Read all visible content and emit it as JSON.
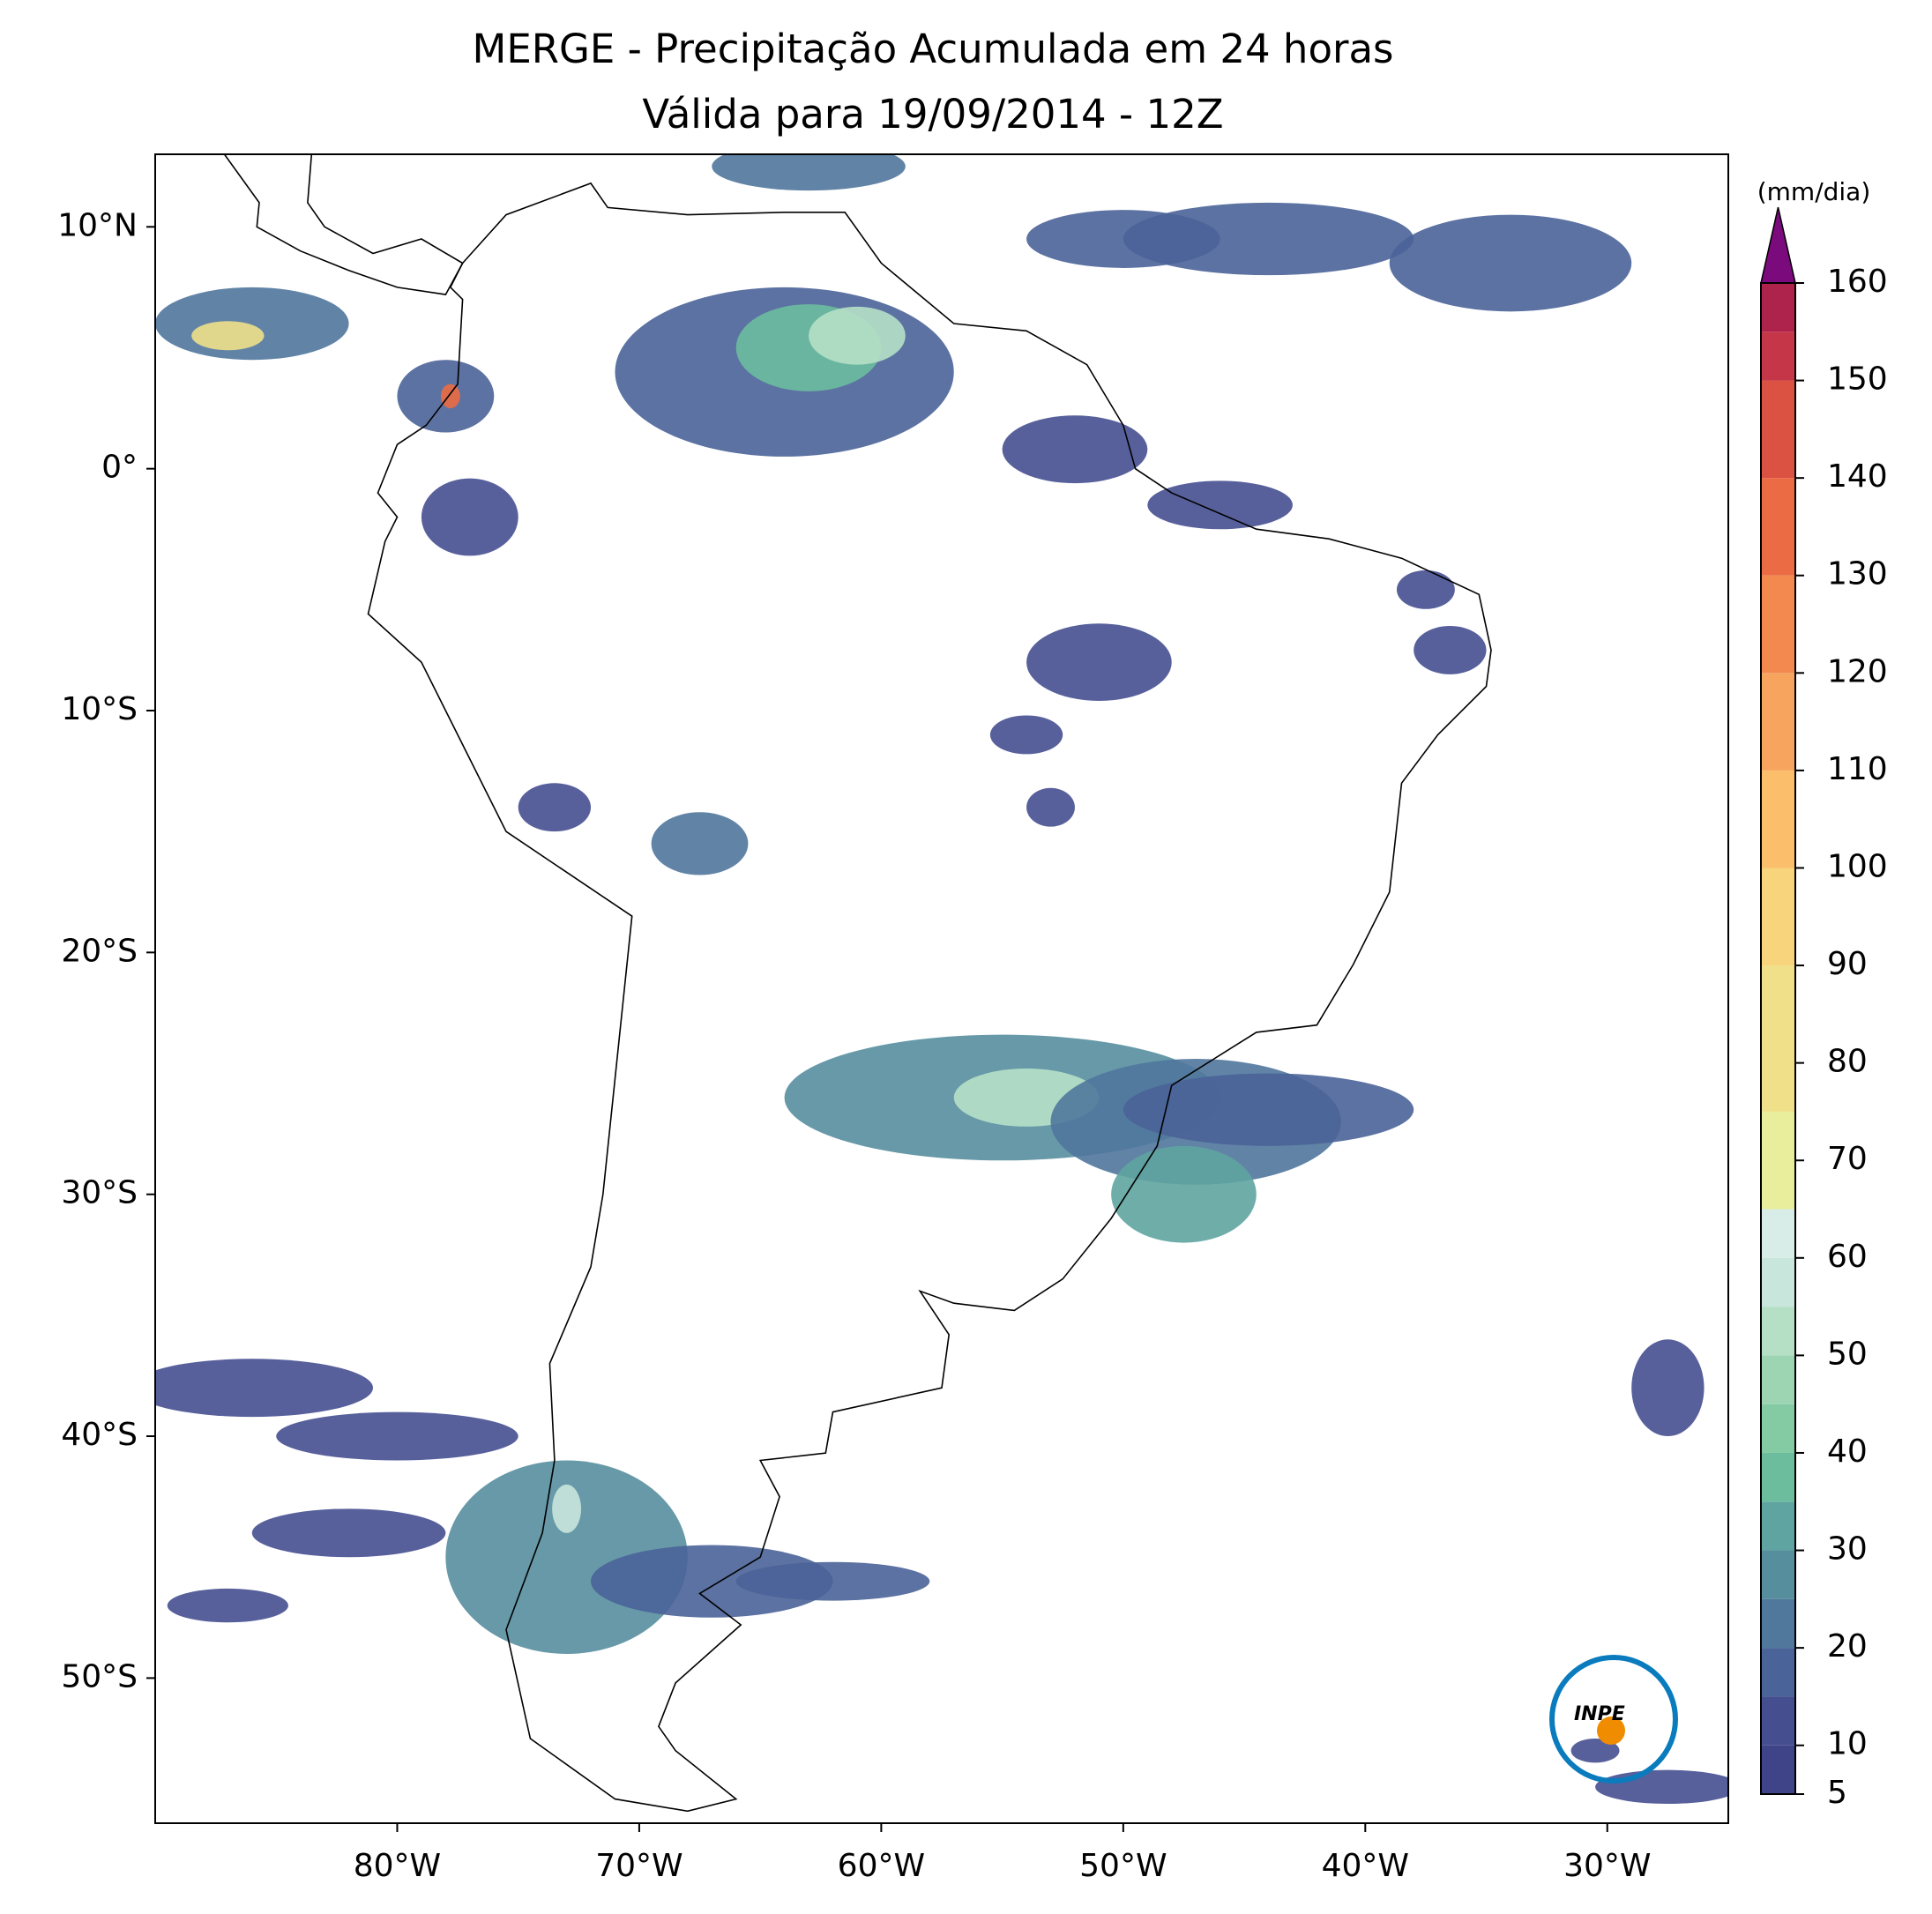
{
  "map": {
    "title": [
      "MERGE - Precipitação Acumulada em 24 horas",
      "Válida para 19/09/2014 - 12Z"
    ],
    "xlim": [
      -90,
      -25
    ],
    "ylim": [
      -56,
      13
    ],
    "xticks": [
      {
        "value": -80,
        "label": "80°W"
      },
      {
        "value": -70,
        "label": "70°W"
      },
      {
        "value": -60,
        "label": "60°W"
      },
      {
        "value": -50,
        "label": "50°W"
      },
      {
        "value": -40,
        "label": "40°W"
      },
      {
        "value": -30,
        "label": "30°W"
      }
    ],
    "yticks": [
      {
        "value": 10,
        "label": "10°N"
      },
      {
        "value": 0,
        "label": "0°"
      },
      {
        "value": -10,
        "label": "10°S"
      },
      {
        "value": -20,
        "label": "20°S"
      },
      {
        "value": -30,
        "label": "30°S"
      },
      {
        "value": -40,
        "label": "40°S"
      },
      {
        "value": -50,
        "label": "50°S"
      }
    ],
    "colorbar": {
      "label": "(mm/dia)",
      "lim": [
        5,
        160
      ],
      "ticks": [
        5,
        10,
        20,
        30,
        40,
        50,
        60,
        70,
        80,
        90,
        100,
        110,
        120,
        130,
        140,
        150,
        160
      ],
      "bands": [
        {
          "value": 5,
          "color": "#3f4388"
        },
        {
          "value": 10,
          "color": "#454f90"
        },
        {
          "value": 15,
          "color": "#4a6398"
        },
        {
          "value": 20,
          "color": "#50779c"
        },
        {
          "value": 25,
          "color": "#578e9e"
        },
        {
          "value": 30,
          "color": "#5fa4a0"
        },
        {
          "value": 35,
          "color": "#6cbd9e"
        },
        {
          "value": 40,
          "color": "#84cba4"
        },
        {
          "value": 45,
          "color": "#9dd5b2"
        },
        {
          "value": 50,
          "color": "#b6e0c6"
        },
        {
          "value": 55,
          "color": "#c8e6dc"
        },
        {
          "value": 60,
          "color": "#d8ece8"
        },
        {
          "value": 65,
          "color": "#e8ee9c"
        },
        {
          "value": 75,
          "color": "#f0e08a"
        },
        {
          "value": 90,
          "color": "#f8d47c"
        },
        {
          "value": 100,
          "color": "#fbbf6c"
        },
        {
          "value": 110,
          "color": "#f7a45e"
        },
        {
          "value": 120,
          "color": "#f3894f"
        },
        {
          "value": 130,
          "color": "#eb6c44"
        },
        {
          "value": 140,
          "color": "#db5243"
        },
        {
          "value": 150,
          "color": "#c63649"
        },
        {
          "value": 155,
          "color": "#ad234b"
        }
      ],
      "extend_color": "#7b0a7c"
    },
    "logo": "INPE"
  }
}
